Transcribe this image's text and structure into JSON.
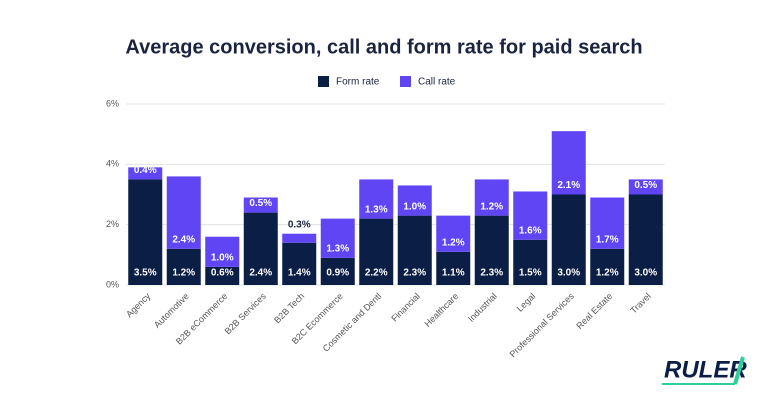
{
  "chart_data": {
    "type": "stacked_bar",
    "title": "Average conversion, call and form rate for paid search",
    "categories": [
      "Agency",
      "Automotive",
      "B2B eCommerce",
      "B2B Services",
      "B2B Tech",
      "B2C Ecommerce",
      "Cosmetic and Dentl",
      "Financial",
      "Healthcare",
      "Industrial",
      "Legal",
      "Professional Services",
      "Real Estate",
      "Travel"
    ],
    "series": [
      {
        "name": "Form rate",
        "color": "#0b1e45",
        "values": [
          3.5,
          1.2,
          0.6,
          2.4,
          1.4,
          0.9,
          2.2,
          2.3,
          1.1,
          2.3,
          1.5,
          3.0,
          1.2,
          3.0
        ],
        "value_labels": [
          "3.5%",
          "1.2%",
          "0.6%",
          "2.4%",
          "1.4%",
          "0.9%",
          "2.2%",
          "2.3%",
          "1.1%",
          "2.3%",
          "1.5%",
          "3.0%",
          "1.2%",
          "3.0%"
        ]
      },
      {
        "name": "Call rate",
        "color": "#6045f5",
        "values": [
          0.4,
          2.4,
          1.0,
          0.5,
          0.3,
          1.3,
          1.3,
          1.0,
          1.2,
          1.2,
          1.6,
          2.1,
          1.7,
          0.5
        ],
        "value_labels": [
          "0.4%",
          "2.4%",
          "1.0%",
          "0.5%",
          "0.3%",
          "1.3%",
          "1.3%",
          "1.0%",
          "1.2%",
          "1.2%",
          "1.6%",
          "2.1%",
          "1.7%",
          "0.5%"
        ]
      }
    ],
    "ylim": [
      0,
      6
    ],
    "yticks": [
      {
        "value": 0,
        "label": "0%"
      },
      {
        "value": 2,
        "label": "2%"
      },
      {
        "value": 4,
        "label": "4%"
      },
      {
        "value": 6,
        "label": "6%"
      }
    ],
    "grid": true,
    "legend": "top"
  },
  "logo": "RULER"
}
